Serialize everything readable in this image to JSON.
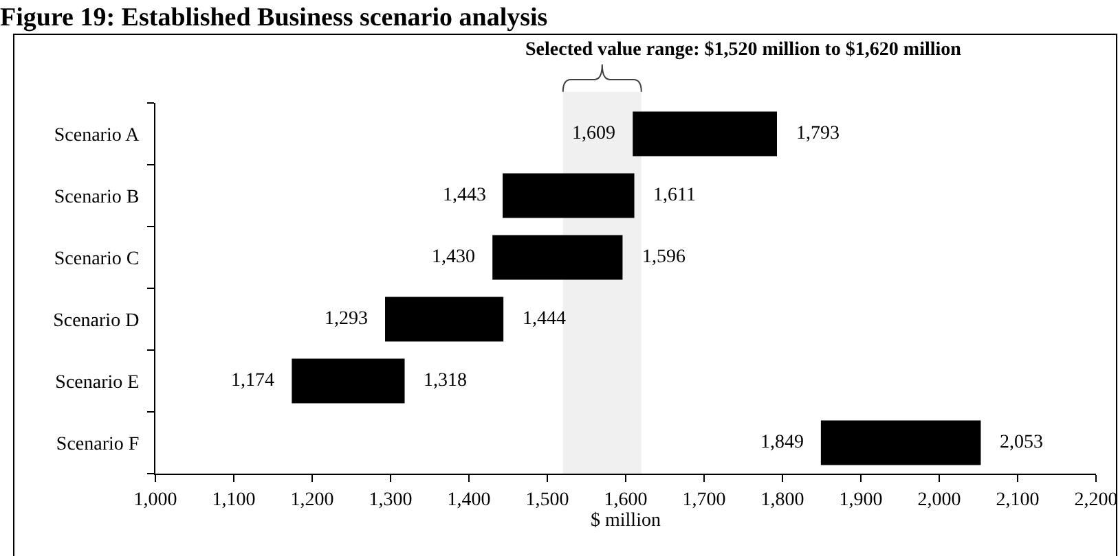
{
  "chart_data": {
    "type": "bar",
    "orientation": "horizontal",
    "title": "Figure 19: Established Business scenario analysis",
    "xlabel": "$ million",
    "categories": [
      "Scenario A",
      "Scenario B",
      "Scenario C",
      "Scenario D",
      "Scenario E",
      "Scenario F"
    ],
    "base": [
      1609,
      1443,
      1430,
      1293,
      1174,
      1849
    ],
    "values": [
      184,
      168,
      166,
      151,
      144,
      204
    ],
    "color": "#000000",
    "xlim": [
      1000,
      2200
    ],
    "xticks": [
      {
        "value": 1000,
        "label": "1,000"
      },
      {
        "value": 1100,
        "label": "1,100"
      },
      {
        "value": 1200,
        "label": "1,200"
      },
      {
        "value": 1300,
        "label": "1,300"
      },
      {
        "value": 1400,
        "label": "1,400"
      },
      {
        "value": 1500,
        "label": "1,500"
      },
      {
        "value": 1600,
        "label": "1,600"
      },
      {
        "value": 1700,
        "label": "1,700"
      },
      {
        "value": 1800,
        "label": "1,800"
      },
      {
        "value": 1900,
        "label": "1,900"
      },
      {
        "value": 2000,
        "label": "2,000"
      },
      {
        "value": 2100,
        "label": "2,100"
      },
      {
        "value": 2200,
        "label": "2,200"
      }
    ],
    "bands": [
      {
        "axis": "x",
        "from": 1520,
        "to": 1620,
        "label": "Selected value range: $1,520 million to $1,620 million",
        "color": "#f0f0f0"
      }
    ],
    "annotations": [
      {
        "text": "1,609",
        "x": 1609,
        "y": "Scenario A"
      },
      {
        "text": "1,793",
        "x": 1793,
        "y": "Scenario A"
      },
      {
        "text": "1,443",
        "x": 1443,
        "y": "Scenario B"
      },
      {
        "text": "1,611",
        "x": 1611,
        "y": "Scenario B"
      },
      {
        "text": "1,430",
        "x": 1430,
        "y": "Scenario C"
      },
      {
        "text": "1,596",
        "x": 1596,
        "y": "Scenario C"
      },
      {
        "text": "1,293",
        "x": 1293,
        "y": "Scenario D"
      },
      {
        "text": "1,444",
        "x": 1444,
        "y": "Scenario D"
      },
      {
        "text": "1,174",
        "x": 1174,
        "y": "Scenario E"
      },
      {
        "text": "1,318",
        "x": 1318,
        "y": "Scenario E"
      },
      {
        "text": "1,849",
        "x": 1849,
        "y": "Scenario F"
      },
      {
        "text": "2,053",
        "x": 2053,
        "y": "Scenario F"
      }
    ],
    "grid": false
  }
}
